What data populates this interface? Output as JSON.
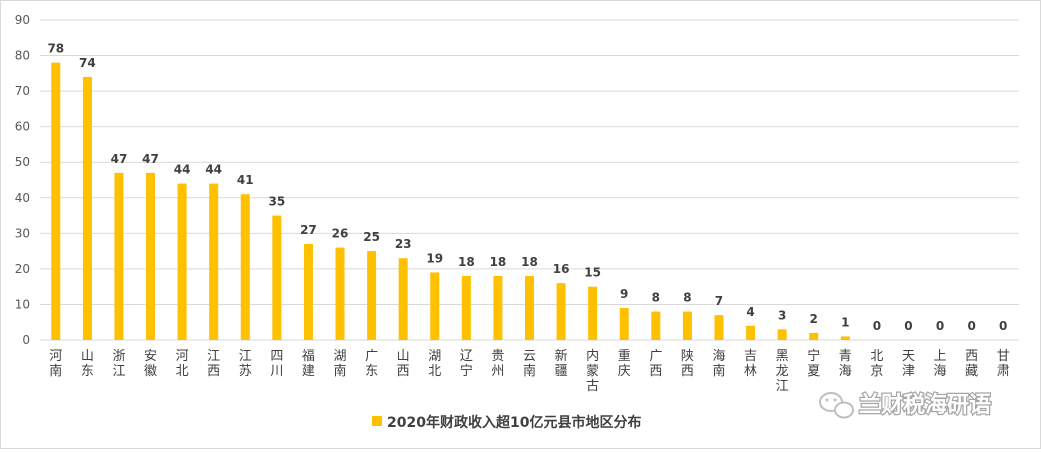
{
  "chart_data": {
    "type": "bar",
    "categories": [
      "河南",
      "山东",
      "浙江",
      "安徽",
      "河北",
      "江西",
      "江苏",
      "四川",
      "福建",
      "湖南",
      "广东",
      "山西",
      "湖北",
      "辽宁",
      "贵州",
      "云南",
      "新疆",
      "内蒙古",
      "重庆",
      "广西",
      "陕西",
      "海南",
      "吉林",
      "黑龙江",
      "宁夏",
      "青海",
      "北京",
      "天津",
      "上海",
      "西藏",
      "甘肃"
    ],
    "series": [
      {
        "name": "2020年财政收入超10亿元县市地区分布",
        "values": [
          78,
          74,
          47,
          47,
          44,
          44,
          41,
          35,
          27,
          26,
          25,
          23,
          19,
          18,
          18,
          18,
          16,
          15,
          9,
          8,
          8,
          7,
          4,
          3,
          2,
          1,
          0,
          0,
          0,
          0,
          0
        ]
      }
    ],
    "yticks": [
      0,
      10,
      20,
      30,
      40,
      50,
      60,
      70,
      80,
      90
    ],
    "ylim": [
      0,
      90
    ],
    "grid": true,
    "legend_position": "bottom",
    "colors": {
      "bar": "#FFC000",
      "grid": "#d9d9d9",
      "text": "#404040"
    }
  },
  "watermark": {
    "text": "兰财税海研语",
    "icon": "wechat-icon"
  }
}
